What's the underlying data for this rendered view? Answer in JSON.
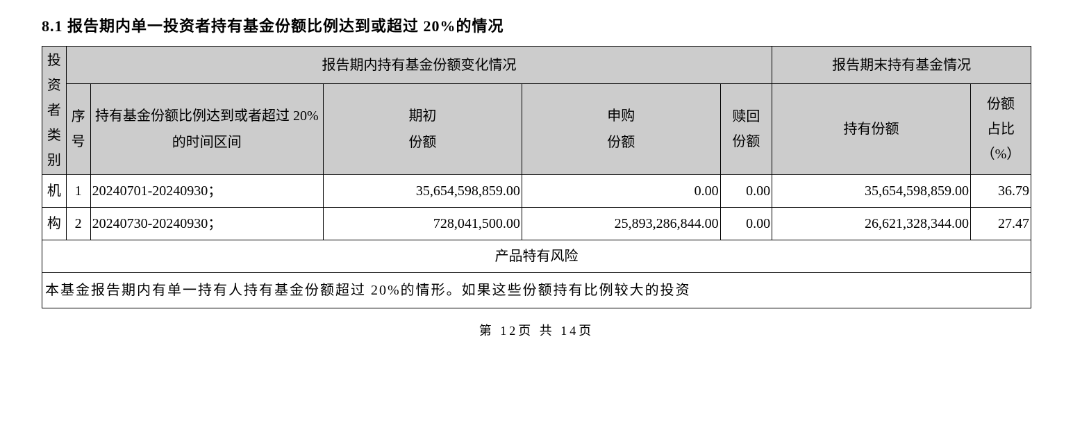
{
  "heading": "8.1 报告期内单一投资者持有基金份额比例达到或超过 20%的情况",
  "headers": {
    "investor_type": "投资者类别",
    "group_change": "报告期内持有基金份额变化情况",
    "group_end": "报告期末持有基金情况",
    "seq": "序号",
    "period": "持有基金份额比例达到或者超过 20%的时间区间",
    "begin_top": "期初",
    "begin_bot": "份额",
    "sub_top": "申购",
    "sub_bot": "份额",
    "redeem_top": "赎回",
    "redeem_bot": "份额",
    "hold": "持有份额",
    "pct_top": "份额",
    "pct_mid": "占比",
    "pct_bot": "（%）"
  },
  "investor_type_cell_top": "机",
  "investor_type_cell_bot": "构",
  "rows": [
    {
      "seq": "1",
      "period": "20240701-20240930；",
      "begin": "35,654,598,859.00",
      "sub": "0.00",
      "redeem": "0.00",
      "hold": "35,654,598,859.00",
      "pct": "36.79"
    },
    {
      "seq": "2",
      "period": "20240730-20240930；",
      "begin": "728,041,500.00",
      "sub": "25,893,286,844.00",
      "redeem": "0.00",
      "hold": "26,621,328,344.00",
      "pct": "27.47"
    }
  ],
  "risk_title": "产品特有风险",
  "risk_note": "本基金报告期内有单一持有人持有基金份额超过 20%的情形。如果这些份额持有比例较大的投资",
  "pager": "第  12页 共  14页"
}
